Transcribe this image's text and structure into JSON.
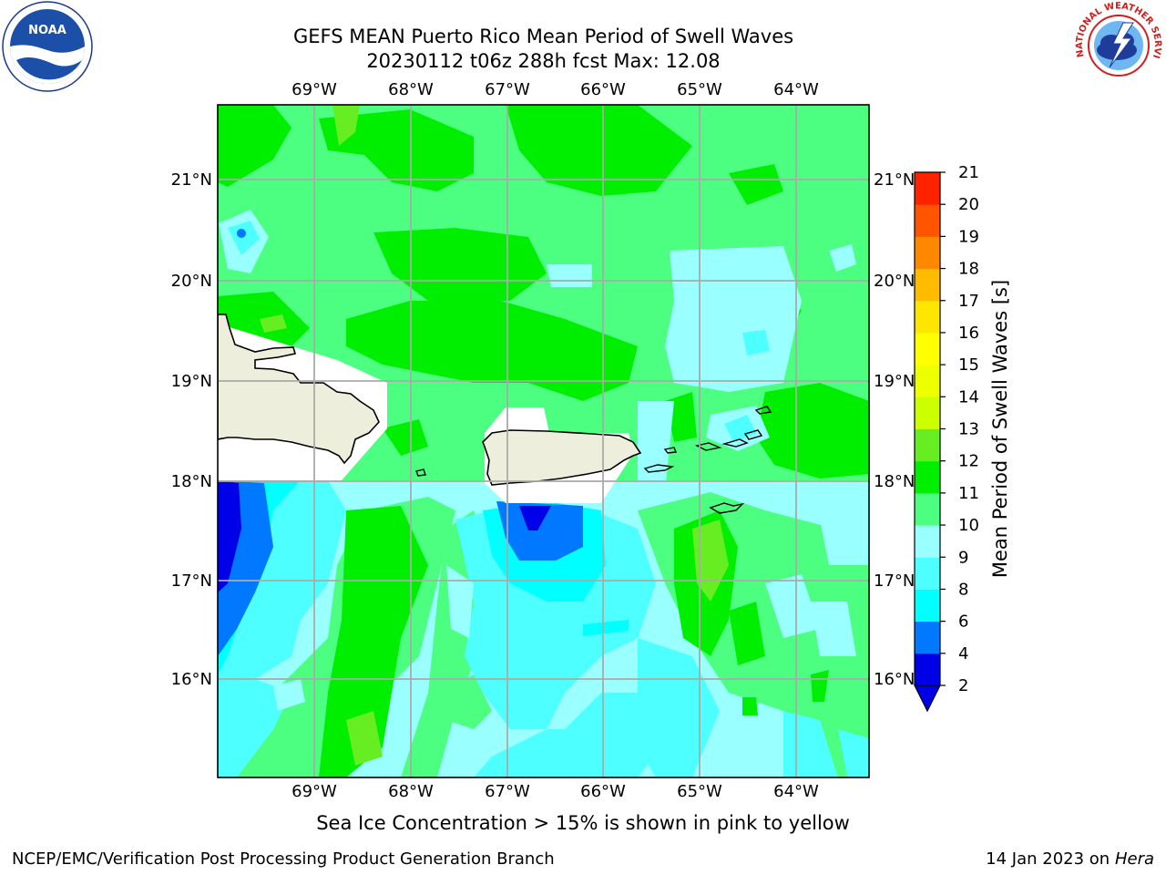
{
  "header": {
    "title_line1": "GEFS MEAN Puerto Rico Mean Period of Swell Waves",
    "title_line2": "20230112 t06z 288h fcst   Max: 12.08"
  },
  "map": {
    "lon_ticks": [
      "69°W",
      "68°W",
      "67°W",
      "66°W",
      "65°W",
      "64°W"
    ],
    "lat_ticks": [
      "21°N",
      "20°N",
      "19°N",
      "18°N",
      "17°N",
      "16°N"
    ],
    "lon_range": [
      -70.0,
      -63.25
    ],
    "lat_range": [
      15.0,
      21.75
    ]
  },
  "colorbar": {
    "label": "Mean Period of Swell Waves [s]",
    "levels": [
      2,
      4,
      6,
      8,
      9,
      10,
      11,
      12,
      13,
      14,
      15,
      16,
      17,
      18,
      19,
      20,
      21
    ],
    "colors": [
      "#0000e8",
      "#0078ff",
      "#00ffff",
      "#4dffff",
      "#99ffff",
      "#4dff80",
      "#00ee00",
      "#66ee22",
      "#ccff00",
      "#eeff00",
      "#ffff00",
      "#ffe600",
      "#ffbb00",
      "#ff8800",
      "#ff5500",
      "#ff2200"
    ],
    "under_color": "#0000e8"
  },
  "footer": {
    "note": "Sea Ice Concentration > 15% is shown in pink to yellow",
    "credit": "NCEP/EMC/Verification Post Processing Product Generation Branch",
    "date": "14 Jan 2023 on ",
    "machine": "Hera"
  },
  "logos": {
    "noaa_text": "NOAA",
    "nws_text": "NATIONAL WEATHER SERVICE"
  }
}
